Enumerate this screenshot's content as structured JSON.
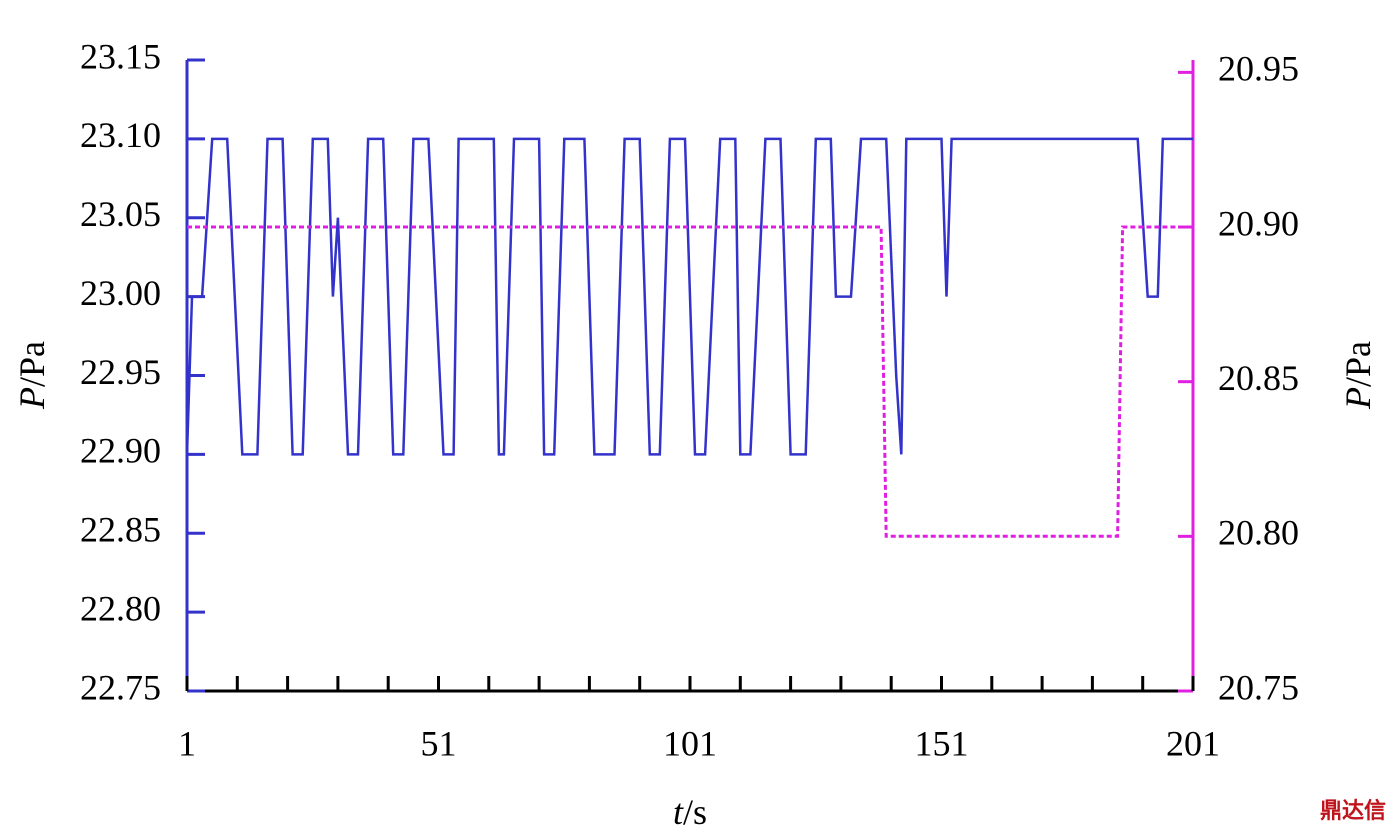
{
  "chart_data": {
    "type": "line",
    "y_label_var": "P",
    "y_label_unit": "/Pa",
    "y2_label_var": "P",
    "y2_label_unit": "/Pa",
    "x_label_var": "t",
    "x_label_unit": "/s",
    "watermark": "鼎达信",
    "xlim": [
      1,
      201
    ],
    "xticks": [
      1,
      51,
      101,
      151,
      201
    ],
    "xminorticks": [
      11,
      21,
      31,
      41,
      61,
      71,
      81,
      91,
      111,
      121,
      131,
      141,
      161,
      171,
      181,
      191
    ],
    "ylim": [
      22.75,
      23.15
    ],
    "yticks": [
      22.75,
      {
        "value": 22.8,
        "label": "22.80"
      },
      22.85,
      {
        "value": 22.9,
        "label": "22.90"
      },
      22.95,
      {
        "value": 23.0,
        "label": "23.00"
      },
      23.05,
      {
        "value": 23.1,
        "label": "23.10"
      },
      23.15
    ],
    "y2lim": [
      20.75,
      20.954
    ],
    "y2ticks": [
      20.75,
      {
        "value": 20.8,
        "label": "20.80"
      },
      20.85,
      {
        "value": 20.9,
        "label": "20.90"
      },
      20.95
    ],
    "left_axis_color": "#3333cc",
    "right_axis_color": "#e020e0",
    "series": [
      {
        "color": "#3333cc",
        "dashed": false,
        "x": [
          1,
          2,
          4,
          6,
          9,
          12,
          15,
          17,
          20,
          22,
          24,
          26,
          29,
          30,
          31,
          33,
          35,
          37,
          40,
          42,
          44,
          46,
          49,
          52,
          54,
          55,
          62,
          63,
          64,
          66,
          71,
          72,
          74,
          76,
          80,
          82,
          86,
          88,
          91,
          93,
          95,
          97,
          100,
          102,
          104,
          107,
          110,
          111,
          113,
          116,
          119,
          121,
          124,
          126,
          129,
          130,
          133,
          135,
          140,
          142,
          143,
          144,
          151,
          152,
          153,
          190,
          192,
          194,
          195,
          201
        ],
        "values": [
          22.9,
          23.0,
          23.0,
          23.1,
          23.1,
          22.9,
          22.9,
          23.1,
          23.1,
          22.9,
          22.9,
          23.1,
          23.1,
          23.0,
          23.05,
          22.9,
          22.9,
          23.1,
          23.1,
          22.9,
          22.9,
          23.1,
          23.1,
          22.9,
          22.9,
          23.1,
          23.1,
          22.9,
          22.9,
          23.1,
          23.1,
          22.9,
          22.9,
          23.1,
          23.1,
          22.9,
          22.9,
          23.1,
          23.1,
          22.9,
          22.9,
          23.1,
          23.1,
          22.9,
          22.9,
          23.1,
          23.1,
          22.9,
          22.9,
          23.1,
          23.1,
          22.9,
          22.9,
          23.1,
          23.1,
          23.0,
          23.0,
          23.1,
          23.1,
          22.95,
          22.9,
          23.1,
          23.1,
          23.0,
          23.1,
          23.1,
          23.0,
          23.0,
          23.1,
          23.1
        ]
      },
      {
        "color": "#e020e0",
        "dashed": true,
        "axis": "y2",
        "x": [
          1,
          139,
          140,
          186,
          187,
          201
        ],
        "values": [
          20.9,
          20.9,
          20.8,
          20.8,
          20.9,
          20.9
        ]
      }
    ]
  }
}
